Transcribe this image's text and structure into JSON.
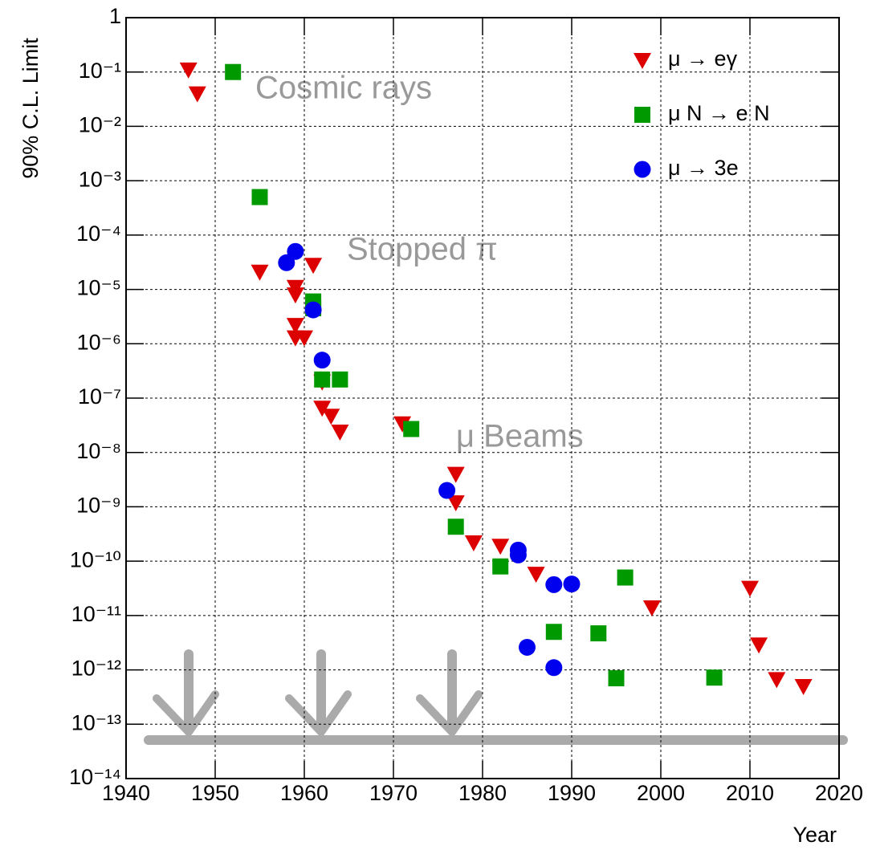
{
  "chart_data": {
    "type": "scatter",
    "x_label": "Year",
    "y_label": "90% C.L. Limit",
    "log_y": true,
    "grid": true,
    "legend": "upper right",
    "annotations": [
      "Cosmic rays",
      "Stopped π",
      "μ Beams"
    ],
    "xlim": [
      1940,
      2020
    ],
    "xticks": [
      1940,
      1950,
      1960,
      1970,
      1980,
      1990,
      2000,
      2010,
      2020
    ],
    "ylim": [
      1e-14,
      1
    ],
    "yticks": [
      {
        "value": 1e-14,
        "label": "10⁻¹⁴"
      },
      {
        "value": 1e-13,
        "label": "10⁻¹³"
      },
      {
        "value": 1e-12,
        "label": "10⁻¹²"
      },
      {
        "value": 1e-11,
        "label": "10⁻¹¹"
      },
      {
        "value": 1e-10,
        "label": "10⁻¹⁰"
      },
      {
        "value": 1e-09,
        "label": "10⁻⁹"
      },
      {
        "value": 1e-08,
        "label": "10⁻⁸"
      },
      {
        "value": 1e-07,
        "label": "10⁻⁷"
      },
      {
        "value": 1e-06,
        "label": "10⁻⁶"
      },
      {
        "value": 1e-05,
        "label": "10⁻⁵"
      },
      {
        "value": 0.0001,
        "label": "10⁻⁴"
      },
      {
        "value": 0.001,
        "label": "10⁻³"
      },
      {
        "value": 0.01,
        "label": "10⁻²"
      },
      {
        "value": 0.1,
        "label": "10⁻¹"
      },
      1
    ],
    "series": [
      {
        "name": "μ → eγ",
        "color": "#dd0000",
        "marker": "triangle",
        "x": [
          1947,
          1948,
          1955,
          1959,
          1959,
          1961,
          1959,
          1959,
          1960,
          1962,
          1962,
          1963,
          1964,
          1971,
          1977,
          1977,
          1979,
          1982,
          1986,
          1999,
          2010,
          2011,
          2013,
          2016
        ],
        "values": [
          0.11,
          0.04,
          2.1e-05,
          1.1e-05,
          8e-06,
          2.8e-05,
          2.2e-06,
          1.3e-06,
          1.3e-06,
          2e-07,
          6.6e-08,
          4.7e-08,
          2.4e-08,
          3.4e-08,
          4e-09,
          1.2e-09,
          2.2e-10,
          1.9e-10,
          5.8e-11,
          1.4e-11,
          3.2e-11,
          2.9e-12,
          6.7e-13,
          5e-13
        ]
      },
      {
        "name": "μ N → e N",
        "color": "#009900",
        "marker": "square",
        "x": [
          1952,
          1955,
          1961,
          1961,
          1962,
          1964,
          1972,
          1977,
          1982,
          1988,
          1993,
          1995,
          1996,
          2006
        ],
        "values": [
          0.1,
          0.0005,
          6e-06,
          4.5e-06,
          2.2e-07,
          2.2e-07,
          2.7e-08,
          4.3e-10,
          8e-11,
          5e-12,
          4.7e-12,
          7e-13,
          5e-11,
          7.2e-13
        ]
      },
      {
        "name": "μ → 3e",
        "color": "#0000ee",
        "marker": "circle",
        "x": [
          1958,
          1959,
          1961,
          1962,
          1976,
          1984,
          1984,
          1985,
          1988,
          1990,
          1988
        ],
        "values": [
          3.1e-05,
          5e-05,
          4.2e-06,
          5e-07,
          2e-09,
          1.6e-10,
          1.3e-10,
          2.6e-12,
          3.7e-11,
          3.8e-11,
          1.1e-12
        ]
      }
    ]
  }
}
